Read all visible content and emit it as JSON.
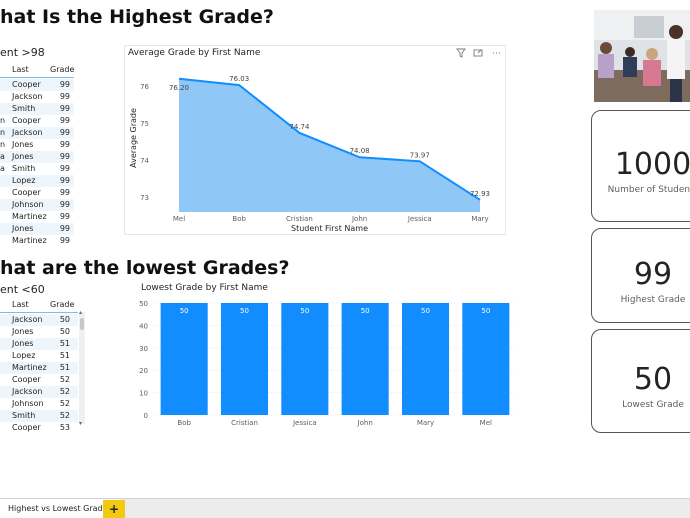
{
  "top_section": {
    "heading": "hat Is the Highest Grade?",
    "table": {
      "subtitle": "ent >98",
      "columns": [
        "Last",
        "Grade"
      ],
      "rows": [
        {
          "first": "",
          "last": "Cooper",
          "grade": "99"
        },
        {
          "first": "",
          "last": "Jackson",
          "grade": "99"
        },
        {
          "first": "",
          "last": "Smith",
          "grade": "99"
        },
        {
          "first": "n",
          "last": "Cooper",
          "grade": "99"
        },
        {
          "first": "n",
          "last": "Jackson",
          "grade": "99"
        },
        {
          "first": "n",
          "last": "Jones",
          "grade": "99"
        },
        {
          "first": "a",
          "last": "Jones",
          "grade": "99"
        },
        {
          "first": "a",
          "last": "Smith",
          "grade": "99"
        },
        {
          "first": "",
          "last": "Lopez",
          "grade": "99"
        },
        {
          "first": "",
          "last": "Cooper",
          "grade": "99"
        },
        {
          "first": "",
          "last": "Johnson",
          "grade": "99"
        },
        {
          "first": "",
          "last": "Martinez",
          "grade": "99"
        },
        {
          "first": "",
          "last": "Jones",
          "grade": "99"
        },
        {
          "first": "",
          "last": "Martinez",
          "grade": "99"
        }
      ]
    }
  },
  "bottom_section": {
    "heading": "hat are the lowest Grades?",
    "table": {
      "subtitle": "ent <60",
      "columns": [
        "Last",
        "Grade"
      ],
      "rows": [
        {
          "first": "",
          "last": "Jackson",
          "grade": "50"
        },
        {
          "first": "",
          "last": "Jones",
          "grade": "50"
        },
        {
          "first": "",
          "last": "Jones",
          "grade": "51"
        },
        {
          "first": "",
          "last": "Lopez",
          "grade": "51"
        },
        {
          "first": "",
          "last": "Martinez",
          "grade": "51"
        },
        {
          "first": "",
          "last": "Cooper",
          "grade": "52"
        },
        {
          "first": "",
          "last": "Jackson",
          "grade": "52"
        },
        {
          "first": "",
          "last": "Johnson",
          "grade": "52"
        },
        {
          "first": "",
          "last": "Smith",
          "grade": "52"
        },
        {
          "first": "",
          "last": "Cooper",
          "grade": "53"
        }
      ],
      "scroll_up": "▴",
      "scroll_down": "▾"
    }
  },
  "area_chart_icons": {
    "filter": "filter-icon",
    "focus": "focus-mode-icon",
    "more": "⋯"
  },
  "kpis": [
    {
      "value": "1000",
      "label": "Number of Students"
    },
    {
      "value": "99",
      "label": "Highest Grade"
    },
    {
      "value": "50",
      "label": "Lowest Grade"
    }
  ],
  "tabs": {
    "active_label": "Highest vs Lowest Grades",
    "add_label": "+"
  },
  "colors": {
    "area_fill": "#8fc7f7",
    "area_line": "#118dff",
    "bar_fill": "#118dff",
    "header_rule": "#7fbde9",
    "add_tab": "#f2c811"
  },
  "chart_data": [
    {
      "type": "area",
      "title": "Average Grade by First Name",
      "xlabel": "Student First Name",
      "ylabel": "Average Grade",
      "categories": [
        "Mel",
        "Bob",
        "Cristian",
        "John",
        "Jessica",
        "Mary"
      ],
      "values": [
        76.2,
        76.03,
        74.74,
        74.08,
        73.97,
        72.93
      ],
      "value_labels": [
        "76.20",
        "76.03",
        "74.74",
        "74.08",
        "73.97",
        "72.93"
      ],
      "y_ticks": [
        "73",
        "74",
        "75",
        "76"
      ],
      "ylim": [
        72.6,
        76.6
      ],
      "grid": false,
      "legend": "none"
    },
    {
      "type": "bar",
      "title": "Lowest Grade by First Name",
      "xlabel": "",
      "ylabel": "",
      "categories": [
        "Bob",
        "Cristian",
        "Jessica",
        "John",
        "Mary",
        "Mel"
      ],
      "values": [
        50,
        50,
        50,
        50,
        50,
        50
      ],
      "value_labels": [
        "50",
        "50",
        "50",
        "50",
        "50",
        "50"
      ],
      "y_ticks": [
        "0",
        "10",
        "20",
        "30",
        "40",
        "50"
      ],
      "ylim": [
        0,
        50
      ],
      "grid": true,
      "legend": "none"
    }
  ]
}
